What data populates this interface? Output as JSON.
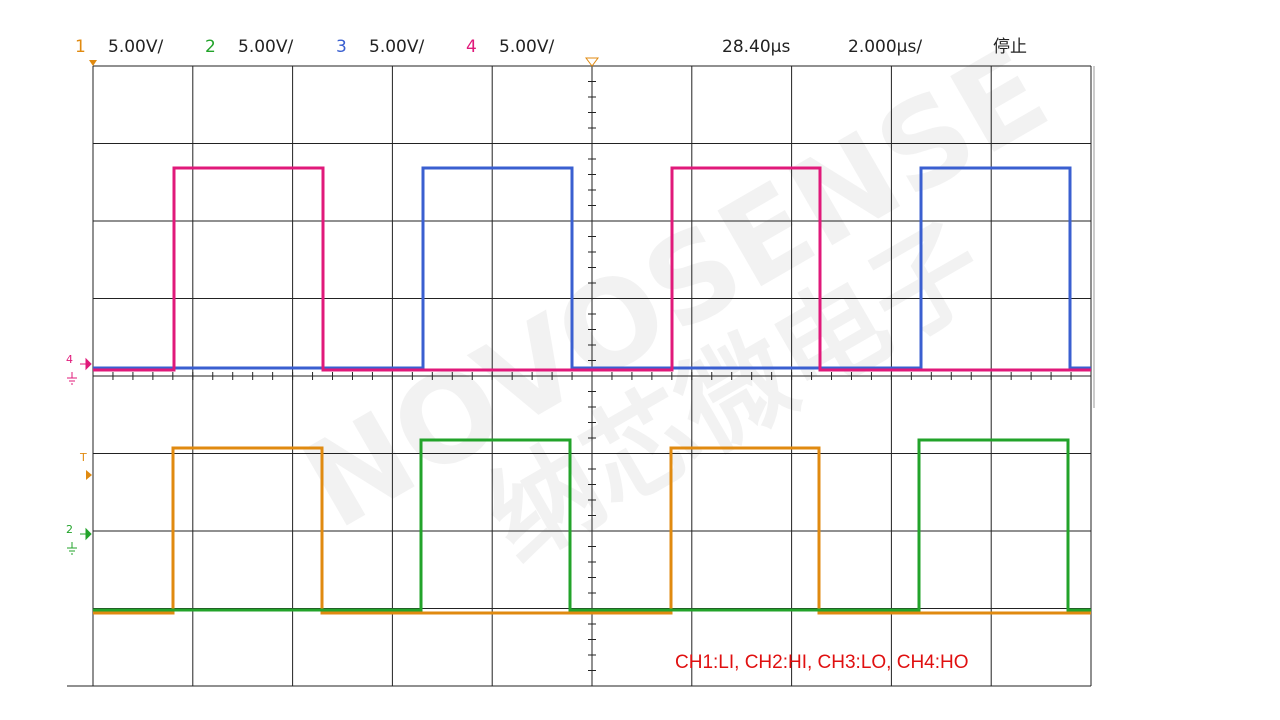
{
  "header": {
    "channels": [
      {
        "number": "1",
        "scale": "5.00V/"
      },
      {
        "number": "2",
        "scale": "5.00V/"
      },
      {
        "number": "3",
        "scale": "5.00V/"
      },
      {
        "number": "4",
        "scale": "5.00V/"
      }
    ],
    "position": "28.40µs",
    "timebase": "2.000µs/",
    "status": "停止"
  },
  "markers": {
    "upper_ground": "4",
    "trigger": "T",
    "lower_ground": "2"
  },
  "watermark": {
    "brand": "NOVOSENSE",
    "chinese": "纳芯微电子"
  },
  "annotation": "CH1:LI, CH2:HI, CH3:LO, CH4:HO"
}
